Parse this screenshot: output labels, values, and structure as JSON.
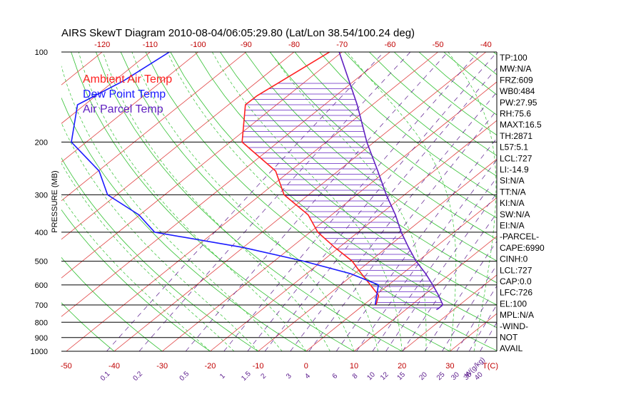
{
  "chart_data": {
    "type": "line",
    "title": "AIRS SkewT Diagram 2010-08-04/06:05:29.80 (Lat/Lon 38.54/100.24 deg)",
    "ylabel": "PRESSURE (MB)",
    "x_unit_label": "T(C)",
    "mixing_ratio_unit_label": "W(g/kg)",
    "pressure_ticks": [
      100,
      200,
      300,
      400,
      500,
      600,
      700,
      800,
      900,
      1000
    ],
    "top_temperature_ticks": [
      -120,
      -110,
      -100,
      -90,
      -80,
      -70,
      -60,
      -50,
      -40
    ],
    "bottom_temperature_ticks": [
      -50,
      -40,
      -30,
      -20,
      -10,
      0,
      10,
      20,
      30
    ],
    "mixing_ratio_ticks": [
      "0.1",
      "0.2",
      "0.5",
      "1",
      "1.5",
      "2",
      "3",
      "4",
      "6",
      "8",
      "10",
      "12",
      "15",
      "20",
      "25",
      "30",
      "35",
      "40"
    ],
    "legend": [
      {
        "name": "Ambient Air Temp",
        "color": "#ff2020"
      },
      {
        "name": "Dew Point Temp",
        "color": "#1a1aff"
      },
      {
        "name": "Air Parcel Temp",
        "color": "#6020c0"
      }
    ],
    "series": [
      {
        "name": "Ambient Air Temp",
        "color": "#ff2020",
        "points": [
          {
            "p": 100,
            "t": -72.6
          },
          {
            "p": 140,
            "t": -76.4
          },
          {
            "p": 150,
            "t": -76.5
          },
          {
            "p": 200,
            "t": -67.5
          },
          {
            "p": 250,
            "t": -53.0
          },
          {
            "p": 300,
            "t": -45.1
          },
          {
            "p": 350,
            "t": -34.9
          },
          {
            "p": 400,
            "t": -28.4
          },
          {
            "p": 450,
            "t": -20.9
          },
          {
            "p": 500,
            "t": -13.7
          },
          {
            "p": 550,
            "t": -8.6
          },
          {
            "p": 600,
            "t": -3.8
          },
          {
            "p": 650,
            "t": 0.6
          },
          {
            "p": 700,
            "t": 2.6
          }
        ]
      },
      {
        "name": "Dew Point Temp",
        "color": "#1a1aff",
        "points": [
          {
            "p": 100,
            "t": -106.0
          },
          {
            "p": 125,
            "t": -108.1
          },
          {
            "p": 150,
            "t": -111.5
          },
          {
            "p": 200,
            "t": -103.1
          },
          {
            "p": 250,
            "t": -89.8
          },
          {
            "p": 300,
            "t": -81.9
          },
          {
            "p": 350,
            "t": -70.2
          },
          {
            "p": 400,
            "t": -62.4
          },
          {
            "p": 450,
            "t": -40.0
          },
          {
            "p": 500,
            "t": -23.8
          },
          {
            "p": 550,
            "t": -10.9
          },
          {
            "p": 600,
            "t": -2.1
          },
          {
            "p": 700,
            "t": 2.4
          }
        ]
      },
      {
        "name": "Air Parcel Temp",
        "color": "#6020c0",
        "points": [
          {
            "p": 100,
            "t": -70.6
          },
          {
            "p": 150,
            "t": -53.2
          },
          {
            "p": 200,
            "t": -41.5
          },
          {
            "p": 250,
            "t": -31.7
          },
          {
            "p": 300,
            "t": -23.8
          },
          {
            "p": 350,
            "t": -16.7
          },
          {
            "p": 400,
            "t": -11.0
          },
          {
            "p": 450,
            "t": -5.5
          },
          {
            "p": 500,
            "t": -0.4
          },
          {
            "p": 550,
            "t": 4.8
          },
          {
            "p": 600,
            "t": 9.2
          },
          {
            "p": 650,
            "t": 13.1
          },
          {
            "p": 700,
            "t": 16.5
          },
          {
            "p": 720,
            "t": 16.5
          },
          {
            "p": 726,
            "t": 16.4
          }
        ]
      }
    ],
    "grid": true,
    "legend_position": "top-left"
  },
  "indices": [
    "TP:100",
    "MW:N/A",
    "FRZ:609",
    "WB0:484",
    "PW:27.95",
    "RH:75.6",
    "MAXT:16.5",
    "TH:2871",
    "L57:5.1",
    "LCL:727",
    "LI:-14.9",
    "SI:N/A",
    "TT:N/A",
    "KI:N/A",
    "SW:N/A",
    "EI:N/A",
    "-PARCEL-",
    "CAPE:6990",
    "CINH:0",
    "LCL:727",
    "CAP:0.0",
    "LFC:726",
    "EL:100",
    "MPL:N/A",
    "-WIND-",
    "NOT",
    "AVAIL"
  ]
}
